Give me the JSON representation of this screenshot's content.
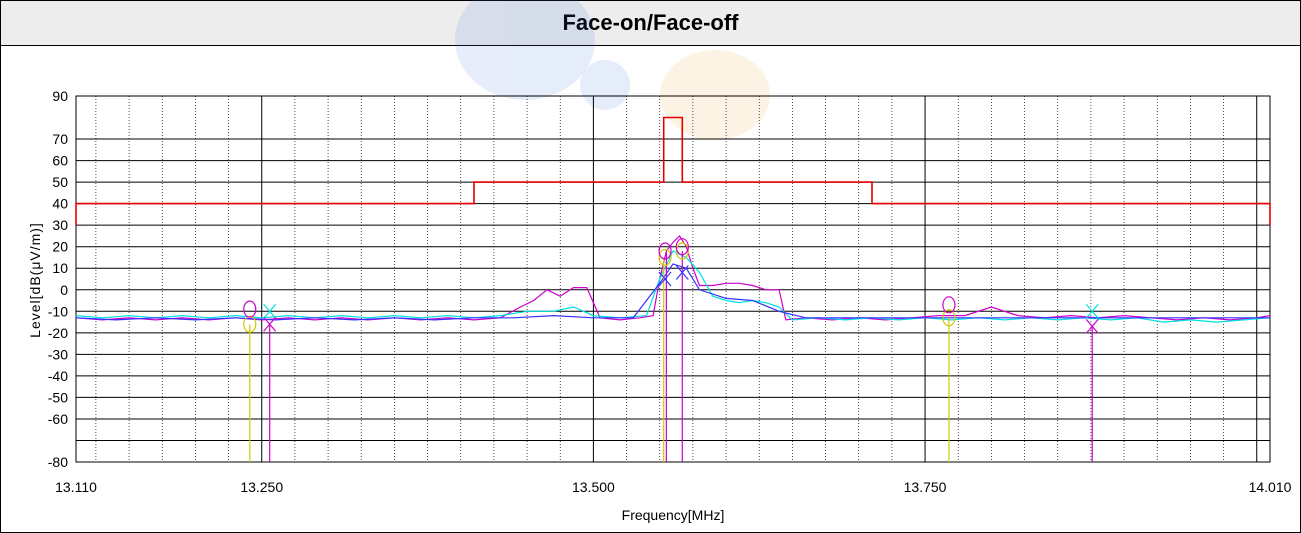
{
  "chart_data": {
    "type": "line",
    "title": "Face-on/Face-off",
    "xlabel": "Frequency[MHz]",
    "ylabel": "Level[dB(μV/m)]",
    "x_ticks": [
      "13.110",
      "13.250",
      "13.500",
      "13.750",
      "14.010"
    ],
    "x_tick_values": [
      13.11,
      13.25,
      13.5,
      13.75,
      14.01
    ],
    "y_ticks": [
      "90",
      "70",
      "60",
      "50",
      "40",
      "30",
      "20",
      "10",
      "0",
      "-10",
      "-20",
      "-30",
      "-40",
      "-50",
      "-60",
      "-80"
    ],
    "y_tick_values": [
      90,
      70,
      60,
      50,
      40,
      30,
      20,
      10,
      0,
      -10,
      -20,
      -30,
      -40,
      -50,
      -60,
      -80
    ],
    "xlim": [
      13.11,
      14.01
    ],
    "ylim": [
      -80,
      90
    ],
    "grid": true,
    "series": [
      {
        "color": "#e60000",
        "style": "step",
        "points": [
          [
            13.11,
            30
          ],
          [
            13.11,
            40
          ],
          [
            13.41,
            40
          ],
          [
            13.41,
            50
          ],
          [
            13.553,
            50
          ],
          [
            13.553,
            80
          ],
          [
            13.567,
            80
          ],
          [
            13.567,
            50
          ],
          [
            13.71,
            50
          ],
          [
            13.71,
            40
          ],
          [
            14.01,
            40
          ],
          [
            14.01,
            30
          ]
        ]
      },
      {
        "color": "#cc00cc",
        "points": [
          [
            13.11,
            -13
          ],
          [
            13.13,
            -14
          ],
          [
            13.15,
            -13
          ],
          [
            13.17,
            -14
          ],
          [
            13.19,
            -13
          ],
          [
            13.21,
            -14
          ],
          [
            13.23,
            -13
          ],
          [
            13.25,
            -14
          ],
          [
            13.27,
            -13
          ],
          [
            13.29,
            -14
          ],
          [
            13.31,
            -13
          ],
          [
            13.33,
            -14
          ],
          [
            13.35,
            -13
          ],
          [
            13.37,
            -14
          ],
          [
            13.39,
            -13
          ],
          [
            13.41,
            -14
          ],
          [
            13.43,
            -13
          ],
          [
            13.445,
            -8
          ],
          [
            13.455,
            -5
          ],
          [
            13.465,
            0
          ],
          [
            13.475,
            -3
          ],
          [
            13.485,
            1
          ],
          [
            13.495,
            1
          ],
          [
            13.505,
            -13
          ],
          [
            13.52,
            -14
          ],
          [
            13.535,
            -13
          ],
          [
            13.545,
            -12
          ],
          [
            13.55,
            5
          ],
          [
            13.555,
            18
          ],
          [
            13.56,
            22
          ],
          [
            13.565,
            25
          ],
          [
            13.57,
            20
          ],
          [
            13.575,
            10
          ],
          [
            13.58,
            2
          ],
          [
            13.59,
            2
          ],
          [
            13.6,
            3
          ],
          [
            13.61,
            3
          ],
          [
            13.62,
            2
          ],
          [
            13.63,
            0
          ],
          [
            13.64,
            0
          ],
          [
            13.645,
            -14
          ],
          [
            13.66,
            -13
          ],
          [
            13.68,
            -14
          ],
          [
            13.7,
            -13
          ],
          [
            13.72,
            -14
          ],
          [
            13.74,
            -13
          ],
          [
            13.76,
            -12
          ],
          [
            13.78,
            -12
          ],
          [
            13.8,
            -8
          ],
          [
            13.82,
            -12
          ],
          [
            13.84,
            -13
          ],
          [
            13.86,
            -12
          ],
          [
            13.88,
            -13
          ],
          [
            13.9,
            -12
          ],
          [
            13.92,
            -13
          ],
          [
            13.94,
            -14
          ],
          [
            13.96,
            -13
          ],
          [
            13.98,
            -14
          ],
          [
            14.0,
            -13
          ],
          [
            14.01,
            -12
          ]
        ]
      },
      {
        "color": "#00e0e0",
        "points": [
          [
            13.11,
            -12
          ],
          [
            13.13,
            -13
          ],
          [
            13.15,
            -12
          ],
          [
            13.17,
            -13
          ],
          [
            13.19,
            -12
          ],
          [
            13.21,
            -13
          ],
          [
            13.23,
            -12
          ],
          [
            13.25,
            -13
          ],
          [
            13.27,
            -12
          ],
          [
            13.29,
            -13
          ],
          [
            13.31,
            -12
          ],
          [
            13.33,
            -13
          ],
          [
            13.35,
            -12
          ],
          [
            13.37,
            -13
          ],
          [
            13.39,
            -12
          ],
          [
            13.41,
            -13
          ],
          [
            13.43,
            -12
          ],
          [
            13.45,
            -10
          ],
          [
            13.47,
            -10
          ],
          [
            13.485,
            -8
          ],
          [
            13.5,
            -12
          ],
          [
            13.52,
            -13
          ],
          [
            13.54,
            -12
          ],
          [
            13.55,
            5
          ],
          [
            13.56,
            18
          ],
          [
            13.57,
            15
          ],
          [
            13.58,
            8
          ],
          [
            13.59,
            -3
          ],
          [
            13.6,
            -5
          ],
          [
            13.61,
            -6
          ],
          [
            13.62,
            -5
          ],
          [
            13.63,
            -6
          ],
          [
            13.64,
            -8
          ],
          [
            13.65,
            -14
          ],
          [
            13.67,
            -13
          ],
          [
            13.69,
            -14
          ],
          [
            13.71,
            -13
          ],
          [
            13.73,
            -14
          ],
          [
            13.75,
            -13
          ],
          [
            13.77,
            -14
          ],
          [
            13.79,
            -13
          ],
          [
            13.81,
            -14
          ],
          [
            13.83,
            -13
          ],
          [
            13.85,
            -14
          ],
          [
            13.87,
            -13
          ],
          [
            13.89,
            -14
          ],
          [
            13.91,
            -13
          ],
          [
            13.93,
            -15
          ],
          [
            13.95,
            -14
          ],
          [
            13.97,
            -15
          ],
          [
            13.99,
            -14
          ],
          [
            14.01,
            -13
          ]
        ]
      },
      {
        "color": "#3333ff",
        "points": [
          [
            13.11,
            -13
          ],
          [
            13.14,
            -14
          ],
          [
            13.17,
            -13
          ],
          [
            13.2,
            -14
          ],
          [
            13.23,
            -13
          ],
          [
            13.26,
            -14
          ],
          [
            13.29,
            -13
          ],
          [
            13.32,
            -14
          ],
          [
            13.35,
            -13
          ],
          [
            13.38,
            -14
          ],
          [
            13.41,
            -13
          ],
          [
            13.44,
            -13
          ],
          [
            13.47,
            -12
          ],
          [
            13.5,
            -13
          ],
          [
            13.53,
            -13
          ],
          [
            13.55,
            3
          ],
          [
            13.56,
            12
          ],
          [
            13.57,
            10
          ],
          [
            13.58,
            0
          ],
          [
            13.6,
            -4
          ],
          [
            13.62,
            -5
          ],
          [
            13.64,
            -10
          ],
          [
            13.66,
            -13
          ],
          [
            13.7,
            -13
          ],
          [
            13.75,
            -13
          ],
          [
            13.8,
            -13
          ],
          [
            13.85,
            -13
          ],
          [
            13.9,
            -13
          ],
          [
            13.95,
            -13
          ],
          [
            14.01,
            -13
          ]
        ]
      }
    ],
    "markers": [
      {
        "shape": "circle",
        "color": "#cccc00",
        "x": 13.241,
        "y": -16
      },
      {
        "shape": "circle",
        "color": "#cc00cc",
        "x": 13.241,
        "y": -9
      },
      {
        "shape": "x",
        "color": "#00e0e0",
        "x": 13.256,
        "y": -10
      },
      {
        "shape": "x",
        "color": "#cc00cc",
        "x": 13.256,
        "y": -16
      },
      {
        "shape": "circle",
        "color": "#cccc00",
        "x": 13.554,
        "y": 15
      },
      {
        "shape": "circle",
        "color": "#cc00cc",
        "x": 13.554,
        "y": 18
      },
      {
        "shape": "x",
        "color": "#3333ff",
        "x": 13.554,
        "y": 5
      },
      {
        "shape": "circle",
        "color": "#cccc00",
        "x": 13.567,
        "y": 18
      },
      {
        "shape": "circle",
        "color": "#cc00cc",
        "x": 13.567,
        "y": 20
      },
      {
        "shape": "x",
        "color": "#3333ff",
        "x": 13.567,
        "y": 8
      },
      {
        "shape": "circle",
        "color": "#cccc00",
        "x": 13.768,
        "y": -13
      },
      {
        "shape": "circle",
        "color": "#cc00cc",
        "x": 13.768,
        "y": -7
      },
      {
        "shape": "x",
        "color": "#00e0e0",
        "x": 13.876,
        "y": -10
      },
      {
        "shape": "x",
        "color": "#cc00cc",
        "x": 13.876,
        "y": -17
      }
    ],
    "marker_stems": [
      {
        "color": "#cccc00",
        "x": 13.241,
        "y": -16
      },
      {
        "color": "#cc00cc",
        "x": 13.256,
        "y": -16
      },
      {
        "color": "#cccc00",
        "x": 13.553,
        "y": 15
      },
      {
        "color": "#cc00cc",
        "x": 13.555,
        "y": 18
      },
      {
        "color": "#cc00cc",
        "x": 13.567,
        "y": 18
      },
      {
        "color": "#cccc00",
        "x": 13.768,
        "y": -13
      },
      {
        "color": "#cc00cc",
        "x": 13.876,
        "y": -17
      }
    ]
  }
}
